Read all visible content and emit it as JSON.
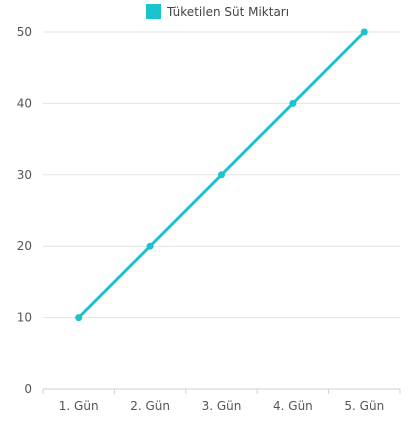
{
  "chart_data": {
    "type": "line",
    "categories": [
      "1. Gün",
      "2. Gün",
      "3. Gün",
      "4. Gün",
      "5. Gün"
    ],
    "series": [
      {
        "name": "Tüketilen Süt Miktarı",
        "values": [
          10,
          20,
          30,
          40,
          50
        ],
        "color": "#1bc3cf"
      }
    ],
    "ylim": [
      0,
      50
    ],
    "yticks": [
      0,
      10,
      20,
      30,
      40,
      50
    ],
    "grid": true,
    "legend": "top-center"
  }
}
